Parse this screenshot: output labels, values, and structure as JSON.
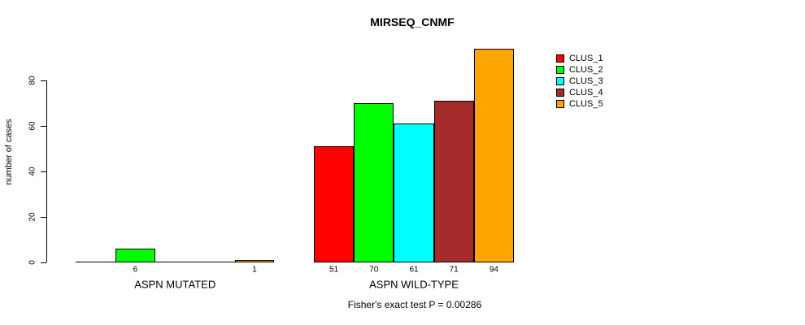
{
  "chart_data": {
    "type": "bar",
    "title": "MIRSEQ_CNMF",
    "ylabel": "number of cases",
    "xlabel": "",
    "ylim": [
      0,
      94
    ],
    "yticks": [
      0,
      20,
      40,
      60,
      80
    ],
    "grid": false,
    "categories": [
      "ASPN MUTATED",
      "ASPN WILD-TYPE"
    ],
    "series": [
      {
        "name": "CLUS_1",
        "color": "#ff0000",
        "values": [
          0,
          51
        ]
      },
      {
        "name": "CLUS_2",
        "color": "#00ff00",
        "values": [
          6,
          70
        ]
      },
      {
        "name": "CLUS_3",
        "color": "#00ffff",
        "values": [
          0,
          61
        ]
      },
      {
        "name": "CLUS_4",
        "color": "#a52a2a",
        "values": [
          0,
          71
        ]
      },
      {
        "name": "CLUS_5",
        "color": "#ffa500",
        "values": [
          1,
          94
        ]
      }
    ],
    "bar_value_labels": [
      [
        "",
        "6",
        "",
        "",
        "1"
      ],
      [
        "51",
        "70",
        "61",
        "71",
        "94"
      ]
    ],
    "annotation": "Fisher's exact test P = 0.00286",
    "legend": {
      "position": "top-right",
      "entries": [
        "CLUS_1",
        "CLUS_2",
        "CLUS_3",
        "CLUS_4",
        "CLUS_5"
      ]
    },
    "bar_border_color": "#000000",
    "axis_color": "#000000"
  }
}
